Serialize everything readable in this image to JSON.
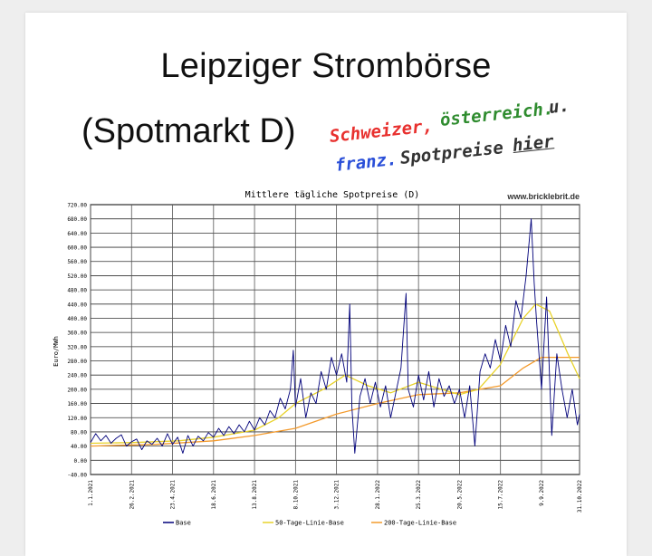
{
  "page": {
    "title_line1": "Leipziger Strombörse",
    "title_line2": "(Spotmarkt D)",
    "handwritten": {
      "swiss": "Schweizer,",
      "austrian": "österreich.",
      "and": "u.",
      "french": "franz.",
      "spot": "Spotpreise",
      "here": "hier"
    },
    "colors": {
      "swiss": "#e8302e",
      "austrian": "#2f8c2f",
      "french": "#2a4fd8"
    }
  },
  "chart_data": {
    "type": "line",
    "title": "Mittlere tägliche Spotpreise (D)",
    "watermark": "www.bricklebrit.de",
    "ylabel": "Euro/MWh",
    "ylim": [
      -40,
      720
    ],
    "y_ticks": [
      "720.00",
      "680.00",
      "640.00",
      "600.00",
      "560.00",
      "520.00",
      "480.00",
      "440.00",
      "400.00",
      "360.00",
      "320.00",
      "280.00",
      "240.00",
      "200.00",
      "160.00",
      "120.00",
      "80.00",
      "40.00",
      "0.00",
      "-40.00"
    ],
    "x_range": [
      "2021-01-01",
      "2022-10-31"
    ],
    "x_ticks": [
      {
        "label": "1.1.2021",
        "date": "2021-01-01"
      },
      {
        "label": "26.2.2021",
        "date": "2021-02-26"
      },
      {
        "label": "23.4.2021",
        "date": "2021-04-23"
      },
      {
        "label": "18.6.2021",
        "date": "2021-06-18"
      },
      {
        "label": "13.8.2021",
        "date": "2021-08-13"
      },
      {
        "label": "8.10.2021",
        "date": "2021-10-08"
      },
      {
        "label": "3.12.2021",
        "date": "2021-12-03"
      },
      {
        "label": "28.1.2022",
        "date": "2022-01-28"
      },
      {
        "label": "25.3.2022",
        "date": "2022-03-25"
      },
      {
        "label": "20.5.2022",
        "date": "2022-05-20"
      },
      {
        "label": "15.7.2022",
        "date": "2022-07-15"
      },
      {
        "label": "9.9.2022",
        "date": "2022-09-09"
      },
      {
        "label": "31.10.2022",
        "date": "2022-10-31"
      }
    ],
    "grid": true,
    "legend_position": "bottom",
    "series": [
      {
        "name": "Base",
        "color": "#00007a",
        "points": [
          [
            "2021-01-01",
            50
          ],
          [
            "2021-01-08",
            75
          ],
          [
            "2021-01-15",
            55
          ],
          [
            "2021-01-22",
            70
          ],
          [
            "2021-01-29",
            48
          ],
          [
            "2021-02-05",
            62
          ],
          [
            "2021-02-12",
            72
          ],
          [
            "2021-02-19",
            40
          ],
          [
            "2021-02-26",
            52
          ],
          [
            "2021-03-05",
            60
          ],
          [
            "2021-03-12",
            30
          ],
          [
            "2021-03-19",
            55
          ],
          [
            "2021-03-26",
            45
          ],
          [
            "2021-04-02",
            62
          ],
          [
            "2021-04-09",
            40
          ],
          [
            "2021-04-16",
            75
          ],
          [
            "2021-04-23",
            45
          ],
          [
            "2021-04-30",
            65
          ],
          [
            "2021-05-07",
            20
          ],
          [
            "2021-05-14",
            70
          ],
          [
            "2021-05-21",
            40
          ],
          [
            "2021-05-28",
            68
          ],
          [
            "2021-06-04",
            55
          ],
          [
            "2021-06-11",
            78
          ],
          [
            "2021-06-18",
            65
          ],
          [
            "2021-06-25",
            90
          ],
          [
            "2021-07-02",
            70
          ],
          [
            "2021-07-09",
            95
          ],
          [
            "2021-07-16",
            75
          ],
          [
            "2021-07-23",
            100
          ],
          [
            "2021-07-30",
            80
          ],
          [
            "2021-08-06",
            110
          ],
          [
            "2021-08-13",
            85
          ],
          [
            "2021-08-20",
            120
          ],
          [
            "2021-08-27",
            100
          ],
          [
            "2021-09-03",
            140
          ],
          [
            "2021-09-10",
            120
          ],
          [
            "2021-09-17",
            175
          ],
          [
            "2021-09-24",
            145
          ],
          [
            "2021-10-01",
            200
          ],
          [
            "2021-10-05",
            310
          ],
          [
            "2021-10-08",
            150
          ],
          [
            "2021-10-15",
            230
          ],
          [
            "2021-10-22",
            120
          ],
          [
            "2021-10-29",
            190
          ],
          [
            "2021-11-05",
            160
          ],
          [
            "2021-11-12",
            250
          ],
          [
            "2021-11-19",
            200
          ],
          [
            "2021-11-26",
            290
          ],
          [
            "2021-12-03",
            240
          ],
          [
            "2021-12-10",
            300
          ],
          [
            "2021-12-17",
            220
          ],
          [
            "2021-12-21",
            440
          ],
          [
            "2021-12-24",
            150
          ],
          [
            "2021-12-28",
            20
          ],
          [
            "2022-01-04",
            180
          ],
          [
            "2022-01-11",
            230
          ],
          [
            "2022-01-18",
            160
          ],
          [
            "2022-01-25",
            220
          ],
          [
            "2022-02-01",
            150
          ],
          [
            "2022-02-08",
            210
          ],
          [
            "2022-02-15",
            120
          ],
          [
            "2022-02-22",
            190
          ],
          [
            "2022-03-01",
            260
          ],
          [
            "2022-03-08",
            470
          ],
          [
            "2022-03-11",
            200
          ],
          [
            "2022-03-18",
            150
          ],
          [
            "2022-03-25",
            240
          ],
          [
            "2022-04-01",
            170
          ],
          [
            "2022-04-08",
            250
          ],
          [
            "2022-04-15",
            150
          ],
          [
            "2022-04-22",
            230
          ],
          [
            "2022-04-29",
            180
          ],
          [
            "2022-05-06",
            210
          ],
          [
            "2022-05-13",
            160
          ],
          [
            "2022-05-20",
            200
          ],
          [
            "2022-05-27",
            120
          ],
          [
            "2022-06-03",
            210
          ],
          [
            "2022-06-10",
            40
          ],
          [
            "2022-06-17",
            250
          ],
          [
            "2022-06-24",
            300
          ],
          [
            "2022-07-01",
            260
          ],
          [
            "2022-07-08",
            340
          ],
          [
            "2022-07-15",
            280
          ],
          [
            "2022-07-22",
            380
          ],
          [
            "2022-07-29",
            320
          ],
          [
            "2022-08-05",
            450
          ],
          [
            "2022-08-12",
            400
          ],
          [
            "2022-08-19",
            520
          ],
          [
            "2022-08-26",
            680
          ],
          [
            "2022-08-30",
            500
          ],
          [
            "2022-09-02",
            400
          ],
          [
            "2022-09-09",
            200
          ],
          [
            "2022-09-16",
            460
          ],
          [
            "2022-09-23",
            70
          ],
          [
            "2022-09-30",
            300
          ],
          [
            "2022-10-07",
            200
          ],
          [
            "2022-10-14",
            120
          ],
          [
            "2022-10-21",
            200
          ],
          [
            "2022-10-28",
            100
          ],
          [
            "2022-10-31",
            130
          ]
        ]
      },
      {
        "name": "50-Tage-Linie-Base",
        "color": "#e8d22a",
        "points": [
          [
            "2021-01-01",
            48
          ],
          [
            "2021-03-01",
            50
          ],
          [
            "2021-05-01",
            55
          ],
          [
            "2021-06-18",
            65
          ],
          [
            "2021-08-13",
            85
          ],
          [
            "2021-09-15",
            120
          ],
          [
            "2021-10-08",
            160
          ],
          [
            "2021-11-15",
            200
          ],
          [
            "2021-12-15",
            240
          ],
          [
            "2022-01-15",
            210
          ],
          [
            "2022-02-15",
            190
          ],
          [
            "2022-03-25",
            220
          ],
          [
            "2022-04-25",
            200
          ],
          [
            "2022-05-20",
            185
          ],
          [
            "2022-06-15",
            200
          ],
          [
            "2022-07-15",
            270
          ],
          [
            "2022-08-15",
            400
          ],
          [
            "2022-09-01",
            440
          ],
          [
            "2022-09-20",
            420
          ],
          [
            "2022-10-15",
            300
          ],
          [
            "2022-10-31",
            230
          ]
        ]
      },
      {
        "name": "200-Tage-Linie-Base",
        "color": "#f39a2c",
        "points": [
          [
            "2021-01-01",
            40
          ],
          [
            "2021-04-01",
            45
          ],
          [
            "2021-06-18",
            55
          ],
          [
            "2021-08-13",
            70
          ],
          [
            "2021-10-08",
            90
          ],
          [
            "2021-12-03",
            130
          ],
          [
            "2022-01-28",
            160
          ],
          [
            "2022-03-25",
            185
          ],
          [
            "2022-05-20",
            190
          ],
          [
            "2022-07-15",
            210
          ],
          [
            "2022-08-15",
            260
          ],
          [
            "2022-09-09",
            290
          ],
          [
            "2022-10-31",
            290
          ]
        ]
      }
    ]
  }
}
